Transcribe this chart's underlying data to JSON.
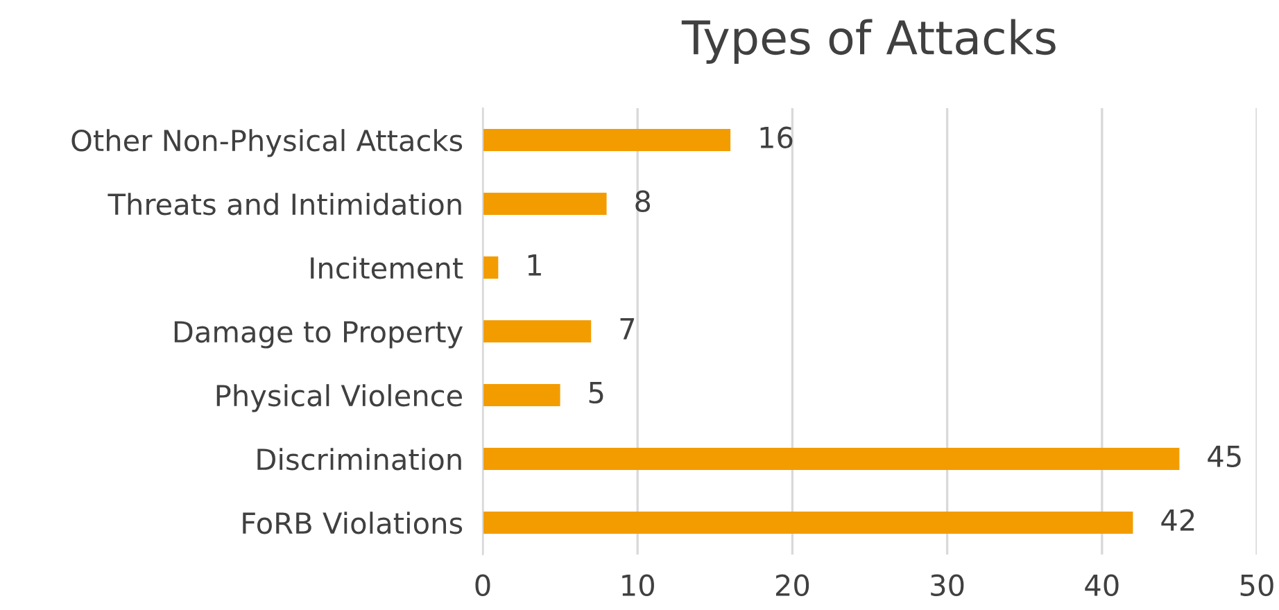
{
  "chart_data": {
    "type": "bar",
    "orientation": "horizontal",
    "title": "Types of Attacks",
    "categories": [
      "Other Non-Physical Attacks",
      "Threats and Intimidation",
      "Incitement",
      "Damage to Property",
      "Physical Violence",
      "Discrimination",
      "FoRB Violations"
    ],
    "values": [
      16,
      8,
      1,
      7,
      5,
      45,
      42
    ],
    "color": "#f39c00",
    "xlim": [
      0,
      50
    ],
    "xticks": [
      0,
      10,
      20,
      30,
      40,
      50
    ],
    "grid": "x",
    "data_labels": true,
    "legend": false
  }
}
